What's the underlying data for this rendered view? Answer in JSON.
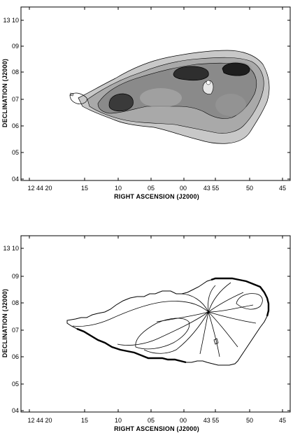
{
  "figure": {
    "panels": [
      {
        "id": "top",
        "type": "greyscale-contour-map",
        "xlabel": "RIGHT ASCENSION (J2000)",
        "ylabel": "DECLINATION (J2000)",
        "x_ticks": [
          "12 44 20",
          "15",
          "10",
          "05",
          "00",
          "43 55",
          "50",
          "45"
        ],
        "y_ticks": [
          "13 10",
          "09",
          "08",
          "07",
          "06",
          "05",
          "04"
        ]
      },
      {
        "id": "bottom",
        "type": "contour-map",
        "xlabel": "RIGHT ASCENSION (J2000)",
        "ylabel": "DECLINATION (J2000)",
        "x_ticks": [
          "12 44 20",
          "15",
          "10",
          "05",
          "00",
          "43 55",
          "50",
          "45"
        ],
        "y_ticks": [
          "13 10",
          "09",
          "08",
          "07",
          "06",
          "05",
          "04"
        ]
      }
    ]
  },
  "chart_data": [
    {
      "type": "heatmap",
      "title": "",
      "xlabel": "RIGHT ASCENSION (J2000)",
      "ylabel": "DECLINATION (J2000)",
      "x_tick_labels": [
        "12 44 20",
        "15",
        "10",
        "05",
        "00",
        "43 55",
        "50",
        "45"
      ],
      "y_tick_labels": [
        "13 10",
        "09",
        "08",
        "07",
        "06",
        "05",
        "04"
      ],
      "greyscale": true,
      "contours": true
    },
    {
      "type": "heatmap",
      "title": "",
      "xlabel": "RIGHT ASCENSION (J2000)",
      "ylabel": "DECLINATION (J2000)",
      "x_tick_labels": [
        "12 44 20",
        "15",
        "10",
        "05",
        "00",
        "43 55",
        "50",
        "45"
      ],
      "y_tick_labels": [
        "13 10",
        "09",
        "08",
        "07",
        "06",
        "05",
        "04"
      ],
      "greyscale": false,
      "contours": true
    }
  ]
}
